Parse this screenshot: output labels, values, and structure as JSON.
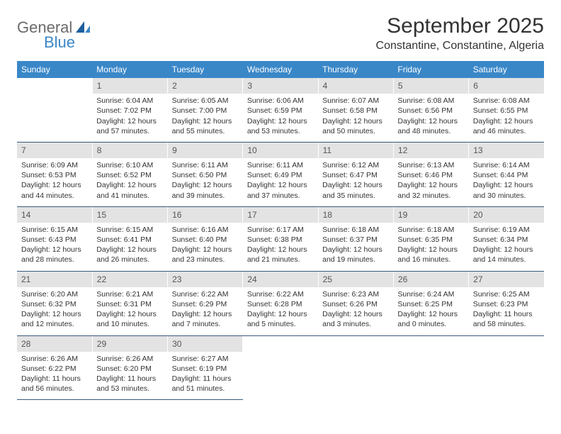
{
  "logo": {
    "general": "General",
    "blue": "Blue"
  },
  "title": "September 2025",
  "location": "Constantine, Constantine, Algeria",
  "colors": {
    "header_bg": "#3a87c8",
    "daynum_bg": "#e3e3e3",
    "border": "#3a5a7a"
  },
  "day_headers": [
    "Sunday",
    "Monday",
    "Tuesday",
    "Wednesday",
    "Thursday",
    "Friday",
    "Saturday"
  ],
  "weeks": [
    {
      "nums": [
        "",
        "1",
        "2",
        "3",
        "4",
        "5",
        "6"
      ],
      "cells": [
        null,
        {
          "sr": "Sunrise: 6:04 AM",
          "ss": "Sunset: 7:02 PM",
          "d1": "Daylight: 12 hours",
          "d2": "and 57 minutes."
        },
        {
          "sr": "Sunrise: 6:05 AM",
          "ss": "Sunset: 7:00 PM",
          "d1": "Daylight: 12 hours",
          "d2": "and 55 minutes."
        },
        {
          "sr": "Sunrise: 6:06 AM",
          "ss": "Sunset: 6:59 PM",
          "d1": "Daylight: 12 hours",
          "d2": "and 53 minutes."
        },
        {
          "sr": "Sunrise: 6:07 AM",
          "ss": "Sunset: 6:58 PM",
          "d1": "Daylight: 12 hours",
          "d2": "and 50 minutes."
        },
        {
          "sr": "Sunrise: 6:08 AM",
          "ss": "Sunset: 6:56 PM",
          "d1": "Daylight: 12 hours",
          "d2": "and 48 minutes."
        },
        {
          "sr": "Sunrise: 6:08 AM",
          "ss": "Sunset: 6:55 PM",
          "d1": "Daylight: 12 hours",
          "d2": "and 46 minutes."
        }
      ]
    },
    {
      "nums": [
        "7",
        "8",
        "9",
        "10",
        "11",
        "12",
        "13"
      ],
      "cells": [
        {
          "sr": "Sunrise: 6:09 AM",
          "ss": "Sunset: 6:53 PM",
          "d1": "Daylight: 12 hours",
          "d2": "and 44 minutes."
        },
        {
          "sr": "Sunrise: 6:10 AM",
          "ss": "Sunset: 6:52 PM",
          "d1": "Daylight: 12 hours",
          "d2": "and 41 minutes."
        },
        {
          "sr": "Sunrise: 6:11 AM",
          "ss": "Sunset: 6:50 PM",
          "d1": "Daylight: 12 hours",
          "d2": "and 39 minutes."
        },
        {
          "sr": "Sunrise: 6:11 AM",
          "ss": "Sunset: 6:49 PM",
          "d1": "Daylight: 12 hours",
          "d2": "and 37 minutes."
        },
        {
          "sr": "Sunrise: 6:12 AM",
          "ss": "Sunset: 6:47 PM",
          "d1": "Daylight: 12 hours",
          "d2": "and 35 minutes."
        },
        {
          "sr": "Sunrise: 6:13 AM",
          "ss": "Sunset: 6:46 PM",
          "d1": "Daylight: 12 hours",
          "d2": "and 32 minutes."
        },
        {
          "sr": "Sunrise: 6:14 AM",
          "ss": "Sunset: 6:44 PM",
          "d1": "Daylight: 12 hours",
          "d2": "and 30 minutes."
        }
      ]
    },
    {
      "nums": [
        "14",
        "15",
        "16",
        "17",
        "18",
        "19",
        "20"
      ],
      "cells": [
        {
          "sr": "Sunrise: 6:15 AM",
          "ss": "Sunset: 6:43 PM",
          "d1": "Daylight: 12 hours",
          "d2": "and 28 minutes."
        },
        {
          "sr": "Sunrise: 6:15 AM",
          "ss": "Sunset: 6:41 PM",
          "d1": "Daylight: 12 hours",
          "d2": "and 26 minutes."
        },
        {
          "sr": "Sunrise: 6:16 AM",
          "ss": "Sunset: 6:40 PM",
          "d1": "Daylight: 12 hours",
          "d2": "and 23 minutes."
        },
        {
          "sr": "Sunrise: 6:17 AM",
          "ss": "Sunset: 6:38 PM",
          "d1": "Daylight: 12 hours",
          "d2": "and 21 minutes."
        },
        {
          "sr": "Sunrise: 6:18 AM",
          "ss": "Sunset: 6:37 PM",
          "d1": "Daylight: 12 hours",
          "d2": "and 19 minutes."
        },
        {
          "sr": "Sunrise: 6:18 AM",
          "ss": "Sunset: 6:35 PM",
          "d1": "Daylight: 12 hours",
          "d2": "and 16 minutes."
        },
        {
          "sr": "Sunrise: 6:19 AM",
          "ss": "Sunset: 6:34 PM",
          "d1": "Daylight: 12 hours",
          "d2": "and 14 minutes."
        }
      ]
    },
    {
      "nums": [
        "21",
        "22",
        "23",
        "24",
        "25",
        "26",
        "27"
      ],
      "cells": [
        {
          "sr": "Sunrise: 6:20 AM",
          "ss": "Sunset: 6:32 PM",
          "d1": "Daylight: 12 hours",
          "d2": "and 12 minutes."
        },
        {
          "sr": "Sunrise: 6:21 AM",
          "ss": "Sunset: 6:31 PM",
          "d1": "Daylight: 12 hours",
          "d2": "and 10 minutes."
        },
        {
          "sr": "Sunrise: 6:22 AM",
          "ss": "Sunset: 6:29 PM",
          "d1": "Daylight: 12 hours",
          "d2": "and 7 minutes."
        },
        {
          "sr": "Sunrise: 6:22 AM",
          "ss": "Sunset: 6:28 PM",
          "d1": "Daylight: 12 hours",
          "d2": "and 5 minutes."
        },
        {
          "sr": "Sunrise: 6:23 AM",
          "ss": "Sunset: 6:26 PM",
          "d1": "Daylight: 12 hours",
          "d2": "and 3 minutes."
        },
        {
          "sr": "Sunrise: 6:24 AM",
          "ss": "Sunset: 6:25 PM",
          "d1": "Daylight: 12 hours",
          "d2": "and 0 minutes."
        },
        {
          "sr": "Sunrise: 6:25 AM",
          "ss": "Sunset: 6:23 PM",
          "d1": "Daylight: 11 hours",
          "d2": "and 58 minutes."
        }
      ]
    },
    {
      "nums": [
        "28",
        "29",
        "30",
        "",
        "",
        "",
        ""
      ],
      "cells": [
        {
          "sr": "Sunrise: 6:26 AM",
          "ss": "Sunset: 6:22 PM",
          "d1": "Daylight: 11 hours",
          "d2": "and 56 minutes."
        },
        {
          "sr": "Sunrise: 6:26 AM",
          "ss": "Sunset: 6:20 PM",
          "d1": "Daylight: 11 hours",
          "d2": "and 53 minutes."
        },
        {
          "sr": "Sunrise: 6:27 AM",
          "ss": "Sunset: 6:19 PM",
          "d1": "Daylight: 11 hours",
          "d2": "and 51 minutes."
        },
        null,
        null,
        null,
        null
      ]
    }
  ]
}
